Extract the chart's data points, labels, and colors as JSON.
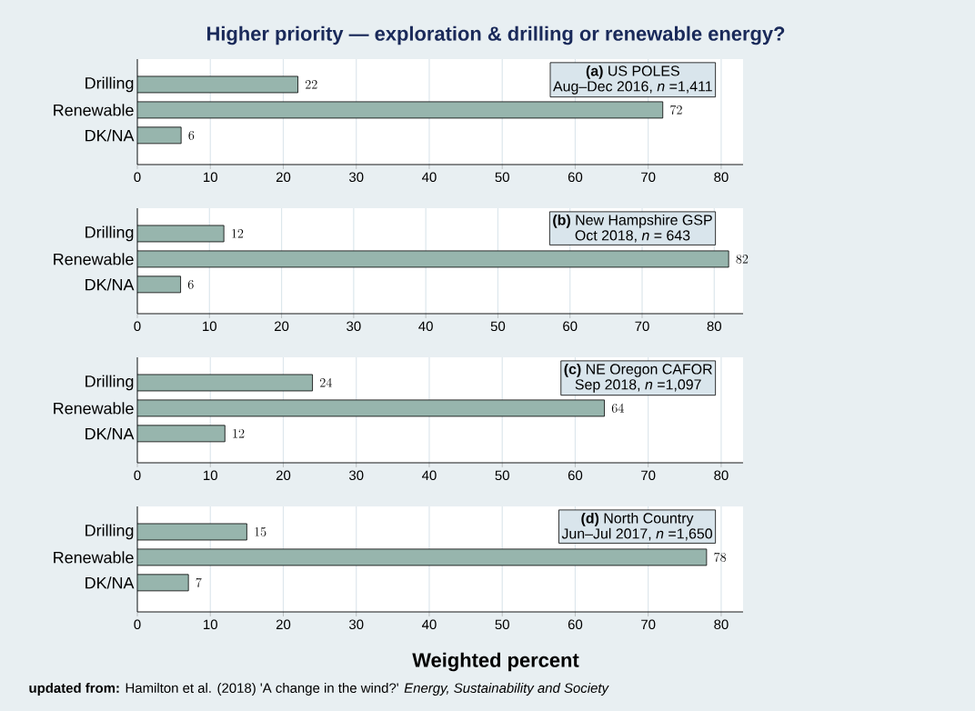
{
  "chart_data": [
    {
      "type": "bar",
      "orientation": "horizontal",
      "title": "Higher priority — exploration & drilling or renewable energy?",
      "categories": [
        "Drilling",
        "Renewable",
        "DK/NA"
      ],
      "values": [
        22,
        72,
        6
      ],
      "color": "#97b5ad",
      "data_labels": true,
      "xlim": [
        0,
        83
      ],
      "xticks": [
        0,
        10,
        20,
        30,
        40,
        50,
        60,
        70,
        80
      ],
      "grid": "x",
      "annotations": [
        "**(a)** US POLES",
        "Aug–Dec 2016, *n* =1,411"
      ]
    },
    {
      "type": "bar",
      "orientation": "horizontal",
      "categories": [
        "Drilling",
        "Renewable",
        "DK/NA"
      ],
      "values": [
        12,
        82,
        6
      ],
      "color": "#97b5ad",
      "data_labels": true,
      "xlim": [
        0,
        84
      ],
      "xticks": [
        0,
        10,
        20,
        30,
        40,
        50,
        60,
        70,
        80
      ],
      "grid": "x",
      "annotations": [
        "**(b)** New Hampshire GSP",
        "Oct 2018, *n* = 643"
      ]
    },
    {
      "type": "bar",
      "orientation": "horizontal",
      "categories": [
        "Drilling",
        "Renewable",
        "DK/NA"
      ],
      "values": [
        24,
        64,
        12
      ],
      "color": "#97b5ad",
      "data_labels": true,
      "xlim": [
        0,
        83
      ],
      "xticks": [
        0,
        10,
        20,
        30,
        40,
        50,
        60,
        70,
        80
      ],
      "grid": "x",
      "annotations": [
        "**(c)** NE Oregon CAFOR",
        "Sep 2018, *n* =1,097"
      ]
    },
    {
      "type": "bar",
      "orientation": "horizontal",
      "categories": [
        "Drilling",
        "Renewable",
        "DK/NA"
      ],
      "values": [
        15,
        78,
        7
      ],
      "color": "#97b5ad",
      "data_labels": true,
      "xlim": [
        0,
        83
      ],
      "xticks": [
        0,
        10,
        20,
        30,
        40,
        50,
        60,
        70,
        80
      ],
      "grid": "x",
      "xlabel": "Weighted percent",
      "annotations": [
        "**(d)** North Country",
        "Jun–Jul 2017, *n* =1,650",
        "**updated from:** Hamilton et al. (2018) 'A change in the wind?' *Energy, Sustainability and Society*"
      ]
    }
  ]
}
